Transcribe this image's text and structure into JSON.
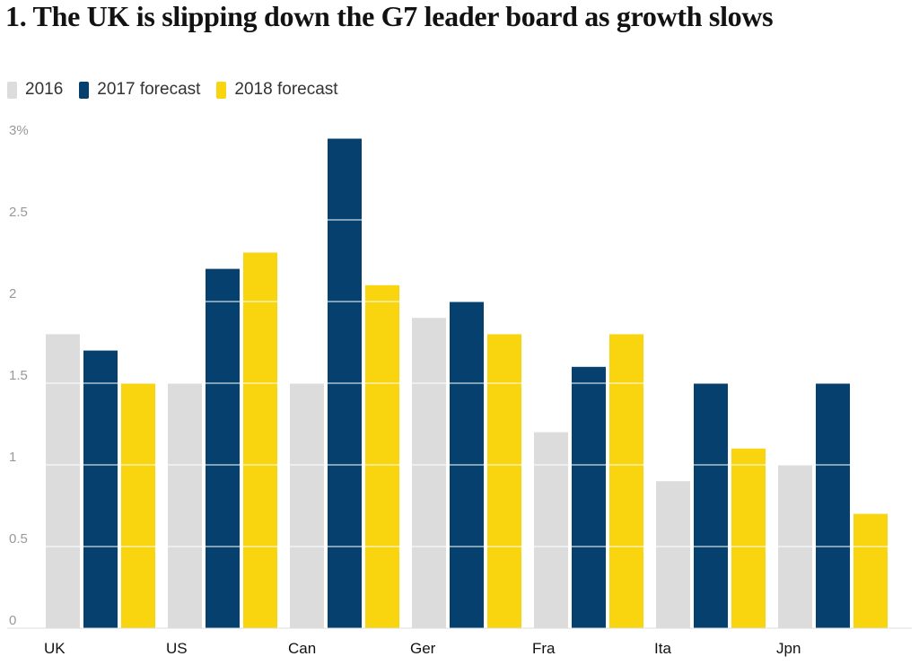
{
  "chart_data": {
    "type": "bar",
    "title": "1. The UK is slipping down the G7 leader board as growth slows",
    "categories": [
      "UK",
      "US",
      "Can",
      "Ger",
      "Fra",
      "Ita",
      "Jpn"
    ],
    "series": [
      {
        "name": "2016",
        "color": "#dcdcdc",
        "values": [
          1.8,
          1.5,
          1.5,
          1.9,
          1.2,
          0.9,
          1.0
        ]
      },
      {
        "name": "2017 forecast",
        "color": "#05406e",
        "values": [
          1.7,
          2.2,
          3.0,
          2.0,
          1.6,
          1.5,
          1.5
        ]
      },
      {
        "name": "2018 forecast",
        "color": "#f8d50f",
        "values": [
          1.5,
          2.3,
          2.1,
          1.8,
          1.8,
          1.1,
          0.7
        ]
      }
    ],
    "yticks": [
      {
        "value": 0,
        "label": "0"
      },
      {
        "value": 0.5,
        "label": "0.5"
      },
      {
        "value": 1,
        "label": "1"
      },
      {
        "value": 1.5,
        "label": "1.5"
      },
      {
        "value": 2,
        "label": "2"
      },
      {
        "value": 2.5,
        "label": "2.5"
      },
      {
        "value": 3,
        "label": "3%"
      }
    ],
    "ylim": [
      0,
      3
    ],
    "xlabel": "",
    "ylabel": "",
    "grid": true,
    "legend_position": "top-left"
  }
}
